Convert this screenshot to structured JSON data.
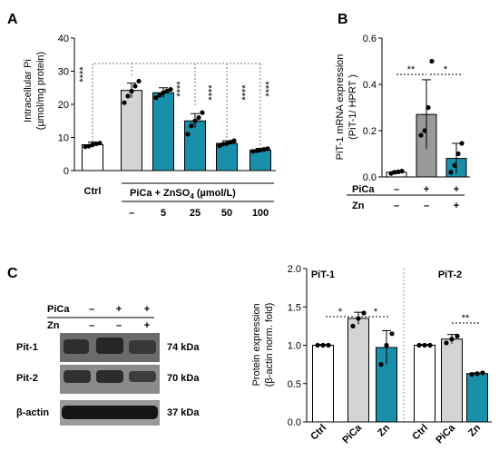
{
  "panel_labels": [
    "A",
    "B",
    "C"
  ],
  "panel_A": {
    "ylabel_line1": "Intracellular Pi",
    "ylabel_line2": "(µmol/mg protein)",
    "treatment_label": "PiCa + ZnSO",
    "treatment_sub": "4",
    "treatment_unit": "(µmol/L)",
    "sig": [
      "****",
      "****",
      "****",
      "****",
      "****"
    ]
  },
  "panel_B": {
    "ylabel_line1": "PiT-1 mRNA expression",
    "ylabel_line2": "(PiT-1/ HPRT )",
    "row_labels": [
      "PiCa",
      "Zn"
    ],
    "row_values": [
      [
        "–",
        "+",
        "+"
      ],
      [
        "–",
        "–",
        "+"
      ]
    ],
    "sig": [
      "**",
      "*"
    ]
  },
  "panel_C": {
    "blot": {
      "row_labels": [
        "PiCa",
        "Zn"
      ],
      "row_values": [
        [
          "–",
          "+",
          "+"
        ],
        [
          "–",
          "–",
          "+"
        ]
      ],
      "bands": [
        {
          "name": "Pit-1",
          "size": "74 kDa"
        },
        {
          "name": "Pit-2",
          "size": "70 kDa"
        },
        {
          "name": "β-actin",
          "size": "37 kDa"
        }
      ]
    },
    "group_titles": [
      "PiT-1",
      "PiT-2"
    ],
    "ylabel_line1": "Protein expression",
    "ylabel_line2": "(β-actin norm. fold)",
    "sig_pit1": [
      "*",
      "*"
    ],
    "sig_pit2": [
      "**"
    ]
  },
  "colors": {
    "ctrl": "#ffffff",
    "pica": "#d4d4d4",
    "zn": "#1a8faa",
    "pica_b": "#9a9a9a",
    "zn_b": "#1a8faa"
  },
  "chart_data": [
    {
      "type": "bar",
      "panel": "A",
      "categories": [
        "Ctrl",
        "–",
        "5",
        "25",
        "50",
        "100"
      ],
      "values": [
        7.8,
        24.2,
        23.5,
        15.0,
        8.2,
        6.2
      ],
      "errors": [
        0.8,
        2.2,
        1.5,
        2.2,
        0.8,
        0.5
      ],
      "points": [
        [
          7.2,
          7.4,
          7.8,
          8.1,
          8.3
        ],
        [
          20.5,
          22.5,
          24.0,
          25.5,
          27.0
        ],
        [
          22.0,
          22.8,
          23.5,
          24.0,
          24.5
        ],
        [
          11.0,
          13.5,
          15.0,
          16.0,
          17.5
        ],
        [
          7.5,
          8.0,
          8.2,
          8.6,
          9.0
        ],
        [
          5.8,
          6.0,
          6.2,
          6.4,
          6.6
        ]
      ],
      "colors": [
        "#ffffff",
        "#d4d4d4",
        "#1a8faa",
        "#1a8faa",
        "#1a8faa",
        "#1a8faa"
      ],
      "yticks": [
        0,
        10,
        20,
        30,
        40
      ],
      "ylim": [
        0,
        40
      ]
    },
    {
      "type": "bar",
      "panel": "B",
      "categories": [
        "Ctrl",
        "PiCa",
        "PiCa+Zn"
      ],
      "values": [
        0.02,
        0.27,
        0.08
      ],
      "errors": [
        0.005,
        0.15,
        0.065
      ],
      "points": [
        [
          0.015,
          0.02,
          0.022,
          0.025
        ],
        [
          0.18,
          0.2,
          0.3,
          0.5
        ],
        [
          0.02,
          0.05,
          0.1,
          0.145
        ]
      ],
      "colors": [
        "#ffffff",
        "#9a9a9a",
        "#1a8faa"
      ],
      "yticks": [
        0.0,
        0.2,
        0.4,
        0.6
      ],
      "ylim": [
        0,
        0.6
      ]
    },
    {
      "type": "bar",
      "panel": "C",
      "groups": [
        "PiT-1",
        "PiT-2"
      ],
      "categories": [
        "Ctrl",
        "PiCa",
        "Zn",
        "Ctrl",
        "PiCa",
        "Zn"
      ],
      "values": [
        1.0,
        1.35,
        0.97,
        1.0,
        1.08,
        0.63
      ],
      "errors": [
        0.01,
        0.08,
        0.22,
        0.01,
        0.06,
        0.01
      ],
      "points": [
        [
          1.0,
          1.0,
          1.0
        ],
        [
          1.25,
          1.35,
          1.42
        ],
        [
          0.75,
          1.0,
          1.15
        ],
        [
          1.0,
          1.0,
          1.0
        ],
        [
          1.03,
          1.08,
          1.12
        ],
        [
          0.62,
          0.63,
          0.64
        ]
      ],
      "colors": [
        "#ffffff",
        "#d4d4d4",
        "#1a8faa",
        "#ffffff",
        "#d4d4d4",
        "#1a8faa"
      ],
      "yticks": [
        0.0,
        0.5,
        1.0,
        1.5,
        2.0
      ],
      "ylim": [
        0,
        2.0
      ]
    }
  ]
}
